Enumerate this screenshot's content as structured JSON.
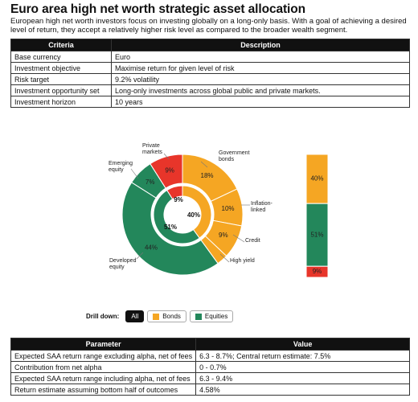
{
  "title": "Euro area high net worth strategic asset allocation",
  "subtitle": "European high net worth investors focus on investing globally on a long-only basis. With a goal of achieving a desired level of return, they accept a relatively higher risk level as compared to the broader wealth segment.",
  "criteria_table": {
    "headers": [
      "Criteria",
      "Description"
    ],
    "rows": [
      [
        "Base currency",
        "Euro"
      ],
      [
        "Investment objective",
        "Maximise return for given level of risk"
      ],
      [
        "Risk target",
        "9.2% volatility"
      ],
      [
        "Investment opportunity set",
        "Long-only investments across global public and private markets."
      ],
      [
        "Investment horizon",
        "10 years"
      ]
    ]
  },
  "drilldown": {
    "label": "Drill down:",
    "all": "All",
    "bonds": "Bonds",
    "equities": "Equities"
  },
  "param_table": {
    "headers": [
      "Parameter",
      "Value"
    ],
    "rows": [
      [
        "Expected SAA return range excluding alpha, net of fees",
        "6.3 - 8.7%; Central return estimate: 7.5%"
      ],
      [
        "Contribution from net alpha",
        "0 - 0.7%"
      ],
      [
        "Expected SAA return range including alpha, net of fees",
        "6.3 - 9.4%"
      ],
      [
        "Return estimate assuming bottom half of outcomes",
        "4.58%"
      ]
    ]
  },
  "colors": {
    "bonds": "#f5a623",
    "equities": "#23875b",
    "private": "#e8352a"
  },
  "chart_data": [
    {
      "type": "pie",
      "title": "",
      "inner_ring": [
        {
          "label": "",
          "value": 40,
          "group": "bonds"
        },
        {
          "label": "",
          "value": 51,
          "group": "equities"
        },
        {
          "label": "",
          "value": 9,
          "group": "private"
        }
      ],
      "outer_ring": [
        {
          "label": "Government bonds",
          "value": 18,
          "group": "bonds"
        },
        {
          "label": "Inflation-linked",
          "value": 10,
          "group": "bonds"
        },
        {
          "label": "Credit",
          "value": 9,
          "group": "bonds"
        },
        {
          "label": "High yield",
          "value": 3,
          "group": "bonds"
        },
        {
          "label": "Developed equity",
          "value": 44,
          "group": "equities"
        },
        {
          "label": "Emerging equity",
          "value": 7,
          "group": "equities"
        },
        {
          "label": "Private markets",
          "value": 9,
          "group": "private"
        }
      ]
    },
    {
      "type": "bar",
      "stacked": true,
      "categories": [
        ""
      ],
      "series": [
        {
          "name": "",
          "values": [
            40
          ],
          "group": "bonds"
        },
        {
          "name": "",
          "values": [
            51
          ],
          "group": "equities"
        },
        {
          "name": "",
          "values": [
            9
          ],
          "group": "private"
        }
      ]
    }
  ]
}
